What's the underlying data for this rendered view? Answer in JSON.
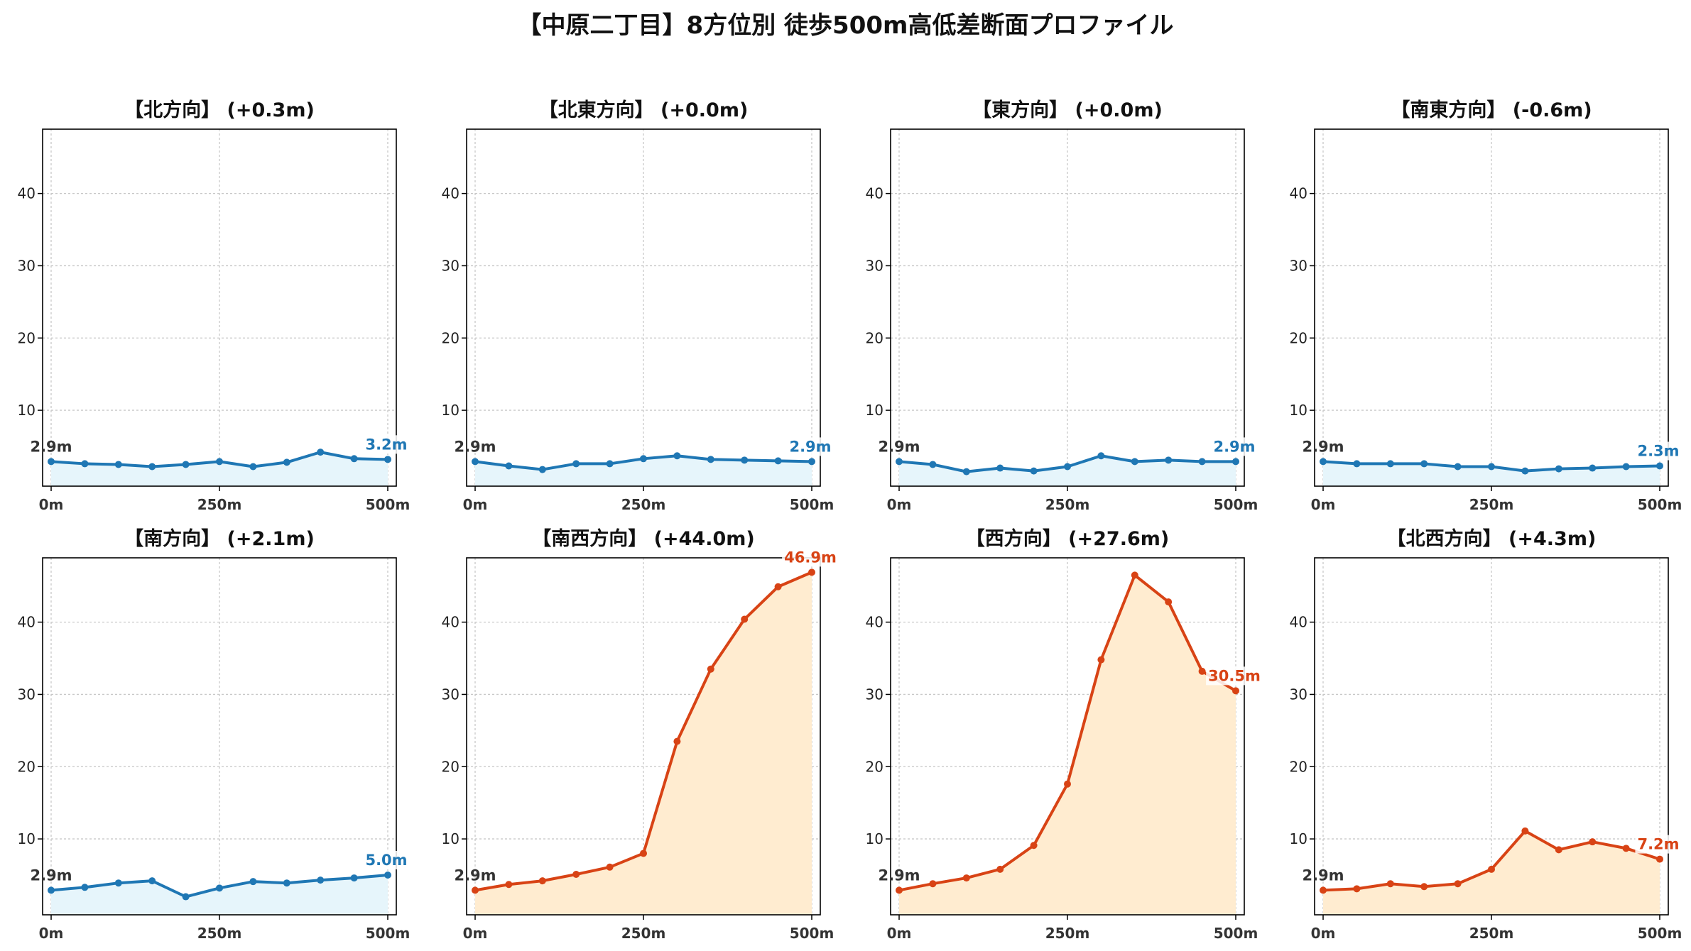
{
  "title": "【中原二丁目】8方位別 徒歩500m高低差断面プロファイル",
  "colors": {
    "flat_line": "#1f77b4",
    "flat_fill": "#e6f5fb",
    "steep_line": "#d84315",
    "steep_fill": "#ffecd0"
  },
  "chart_data": [
    {
      "type": "area",
      "title": "【北方向】 (+0.3m)",
      "x": [
        0,
        50,
        100,
        150,
        200,
        250,
        300,
        350,
        400,
        450,
        500
      ],
      "values": [
        2.9,
        2.6,
        2.5,
        2.2,
        2.5,
        2.9,
        2.2,
        2.8,
        4.2,
        3.3,
        3.2
      ],
      "start_label": "2.9m",
      "end_label": "3.2m",
      "x_ticks": [
        "0m",
        "250m",
        "500m"
      ],
      "ylim": [
        -0.5,
        48.9
      ],
      "y_ticks": [
        10,
        20,
        30,
        40
      ],
      "grid": true,
      "style": "flat"
    },
    {
      "type": "area",
      "title": "【北東方向】 (+0.0m)",
      "x": [
        0,
        50,
        100,
        150,
        200,
        250,
        300,
        350,
        400,
        450,
        500
      ],
      "values": [
        2.9,
        2.3,
        1.8,
        2.6,
        2.6,
        3.3,
        3.7,
        3.2,
        3.1,
        3.0,
        2.9
      ],
      "start_label": "2.9m",
      "end_label": "2.9m",
      "x_ticks": [
        "0m",
        "250m",
        "500m"
      ],
      "ylim": [
        -0.5,
        48.9
      ],
      "y_ticks": [
        10,
        20,
        30,
        40
      ],
      "grid": true,
      "style": "flat"
    },
    {
      "type": "area",
      "title": "【東方向】 (+0.0m)",
      "x": [
        0,
        50,
        100,
        150,
        200,
        250,
        300,
        350,
        400,
        450,
        500
      ],
      "values": [
        2.9,
        2.5,
        1.5,
        2.0,
        1.6,
        2.2,
        3.7,
        2.9,
        3.1,
        2.9,
        2.9
      ],
      "start_label": "2.9m",
      "end_label": "2.9m",
      "x_ticks": [
        "0m",
        "250m",
        "500m"
      ],
      "ylim": [
        -0.5,
        48.9
      ],
      "y_ticks": [
        10,
        20,
        30,
        40
      ],
      "grid": true,
      "style": "flat"
    },
    {
      "type": "area",
      "title": "【南東方向】 (-0.6m)",
      "x": [
        0,
        50,
        100,
        150,
        200,
        250,
        300,
        350,
        400,
        450,
        500
      ],
      "values": [
        2.9,
        2.6,
        2.6,
        2.6,
        2.2,
        2.2,
        1.6,
        1.9,
        2.0,
        2.2,
        2.3
      ],
      "start_label": "2.9m",
      "end_label": "2.3m",
      "x_ticks": [
        "0m",
        "250m",
        "500m"
      ],
      "ylim": [
        -0.5,
        48.9
      ],
      "y_ticks": [
        10,
        20,
        30,
        40
      ],
      "grid": true,
      "style": "flat"
    },
    {
      "type": "area",
      "title": "【南方向】 (+2.1m)",
      "x": [
        0,
        50,
        100,
        150,
        200,
        250,
        300,
        350,
        400,
        450,
        500
      ],
      "values": [
        2.9,
        3.3,
        3.9,
        4.2,
        2.0,
        3.2,
        4.1,
        3.9,
        4.3,
        4.6,
        5.0
      ],
      "start_label": "2.9m",
      "end_label": "5.0m",
      "x_ticks": [
        "0m",
        "250m",
        "500m"
      ],
      "ylim": [
        -0.5,
        48.9
      ],
      "y_ticks": [
        10,
        20,
        30,
        40
      ],
      "grid": true,
      "style": "flat"
    },
    {
      "type": "area",
      "title": "【南西方向】 (+44.0m)",
      "x": [
        0,
        50,
        100,
        150,
        200,
        250,
        300,
        350,
        400,
        450,
        500
      ],
      "values": [
        2.9,
        3.7,
        4.2,
        5.1,
        6.1,
        8.0,
        23.5,
        33.5,
        40.4,
        44.9,
        46.9
      ],
      "start_label": "2.9m",
      "end_label": "46.9m",
      "x_ticks": [
        "0m",
        "250m",
        "500m"
      ],
      "ylim": [
        -0.5,
        48.9
      ],
      "y_ticks": [
        10,
        20,
        30,
        40
      ],
      "grid": true,
      "style": "steep"
    },
    {
      "type": "area",
      "title": "【西方向】 (+27.6m)",
      "x": [
        0,
        50,
        100,
        150,
        200,
        250,
        300,
        350,
        400,
        450,
        500
      ],
      "values": [
        2.9,
        3.8,
        4.6,
        5.8,
        9.1,
        17.6,
        34.8,
        46.5,
        42.8,
        33.2,
        30.5
      ],
      "start_label": "2.9m",
      "end_label": "30.5m",
      "x_ticks": [
        "0m",
        "250m",
        "500m"
      ],
      "ylim": [
        -0.5,
        48.9
      ],
      "y_ticks": [
        10,
        20,
        30,
        40
      ],
      "grid": true,
      "style": "steep"
    },
    {
      "type": "area",
      "title": "【北西方向】 (+4.3m)",
      "x": [
        0,
        50,
        100,
        150,
        200,
        250,
        300,
        350,
        400,
        450,
        500
      ],
      "values": [
        2.9,
        3.1,
        3.8,
        3.4,
        3.8,
        5.8,
        11.1,
        8.5,
        9.6,
        8.7,
        7.2
      ],
      "start_label": "2.9m",
      "end_label": "7.2m",
      "x_ticks": [
        "0m",
        "250m",
        "500m"
      ],
      "ylim": [
        -0.5,
        48.9
      ],
      "y_ticks": [
        10,
        20,
        30,
        40
      ],
      "grid": true,
      "style": "steep"
    }
  ]
}
